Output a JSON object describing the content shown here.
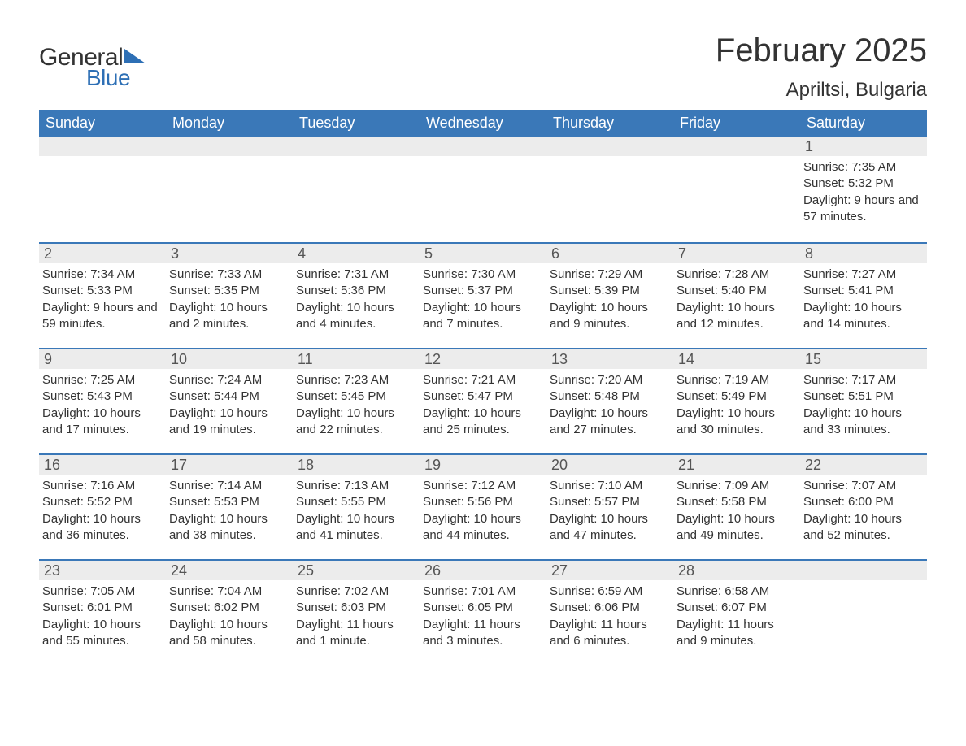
{
  "logo": {
    "text_general": "General",
    "text_blue": "Blue",
    "icon_color": "#2d6fb5"
  },
  "title": "February 2025",
  "location": "Apriltsi, Bulgaria",
  "colors": {
    "header_bg": "#3a78b8",
    "header_text": "#ffffff",
    "daynum_bg": "#ececec",
    "body_text": "#333333",
    "week_border": "#3a78b8"
  },
  "weekdays": [
    "Sunday",
    "Monday",
    "Tuesday",
    "Wednesday",
    "Thursday",
    "Friday",
    "Saturday"
  ],
  "weeks": [
    [
      {
        "day": "",
        "sunrise": "",
        "sunset": "",
        "daylight": ""
      },
      {
        "day": "",
        "sunrise": "",
        "sunset": "",
        "daylight": ""
      },
      {
        "day": "",
        "sunrise": "",
        "sunset": "",
        "daylight": ""
      },
      {
        "day": "",
        "sunrise": "",
        "sunset": "",
        "daylight": ""
      },
      {
        "day": "",
        "sunrise": "",
        "sunset": "",
        "daylight": ""
      },
      {
        "day": "",
        "sunrise": "",
        "sunset": "",
        "daylight": ""
      },
      {
        "day": "1",
        "sunrise": "Sunrise: 7:35 AM",
        "sunset": "Sunset: 5:32 PM",
        "daylight": "Daylight: 9 hours and 57 minutes."
      }
    ],
    [
      {
        "day": "2",
        "sunrise": "Sunrise: 7:34 AM",
        "sunset": "Sunset: 5:33 PM",
        "daylight": "Daylight: 9 hours and 59 minutes."
      },
      {
        "day": "3",
        "sunrise": "Sunrise: 7:33 AM",
        "sunset": "Sunset: 5:35 PM",
        "daylight": "Daylight: 10 hours and 2 minutes."
      },
      {
        "day": "4",
        "sunrise": "Sunrise: 7:31 AM",
        "sunset": "Sunset: 5:36 PM",
        "daylight": "Daylight: 10 hours and 4 minutes."
      },
      {
        "day": "5",
        "sunrise": "Sunrise: 7:30 AM",
        "sunset": "Sunset: 5:37 PM",
        "daylight": "Daylight: 10 hours and 7 minutes."
      },
      {
        "day": "6",
        "sunrise": "Sunrise: 7:29 AM",
        "sunset": "Sunset: 5:39 PM",
        "daylight": "Daylight: 10 hours and 9 minutes."
      },
      {
        "day": "7",
        "sunrise": "Sunrise: 7:28 AM",
        "sunset": "Sunset: 5:40 PM",
        "daylight": "Daylight: 10 hours and 12 minutes."
      },
      {
        "day": "8",
        "sunrise": "Sunrise: 7:27 AM",
        "sunset": "Sunset: 5:41 PM",
        "daylight": "Daylight: 10 hours and 14 minutes."
      }
    ],
    [
      {
        "day": "9",
        "sunrise": "Sunrise: 7:25 AM",
        "sunset": "Sunset: 5:43 PM",
        "daylight": "Daylight: 10 hours and 17 minutes."
      },
      {
        "day": "10",
        "sunrise": "Sunrise: 7:24 AM",
        "sunset": "Sunset: 5:44 PM",
        "daylight": "Daylight: 10 hours and 19 minutes."
      },
      {
        "day": "11",
        "sunrise": "Sunrise: 7:23 AM",
        "sunset": "Sunset: 5:45 PM",
        "daylight": "Daylight: 10 hours and 22 minutes."
      },
      {
        "day": "12",
        "sunrise": "Sunrise: 7:21 AM",
        "sunset": "Sunset: 5:47 PM",
        "daylight": "Daylight: 10 hours and 25 minutes."
      },
      {
        "day": "13",
        "sunrise": "Sunrise: 7:20 AM",
        "sunset": "Sunset: 5:48 PM",
        "daylight": "Daylight: 10 hours and 27 minutes."
      },
      {
        "day": "14",
        "sunrise": "Sunrise: 7:19 AM",
        "sunset": "Sunset: 5:49 PM",
        "daylight": "Daylight: 10 hours and 30 minutes."
      },
      {
        "day": "15",
        "sunrise": "Sunrise: 7:17 AM",
        "sunset": "Sunset: 5:51 PM",
        "daylight": "Daylight: 10 hours and 33 minutes."
      }
    ],
    [
      {
        "day": "16",
        "sunrise": "Sunrise: 7:16 AM",
        "sunset": "Sunset: 5:52 PM",
        "daylight": "Daylight: 10 hours and 36 minutes."
      },
      {
        "day": "17",
        "sunrise": "Sunrise: 7:14 AM",
        "sunset": "Sunset: 5:53 PM",
        "daylight": "Daylight: 10 hours and 38 minutes."
      },
      {
        "day": "18",
        "sunrise": "Sunrise: 7:13 AM",
        "sunset": "Sunset: 5:55 PM",
        "daylight": "Daylight: 10 hours and 41 minutes."
      },
      {
        "day": "19",
        "sunrise": "Sunrise: 7:12 AM",
        "sunset": "Sunset: 5:56 PM",
        "daylight": "Daylight: 10 hours and 44 minutes."
      },
      {
        "day": "20",
        "sunrise": "Sunrise: 7:10 AM",
        "sunset": "Sunset: 5:57 PM",
        "daylight": "Daylight: 10 hours and 47 minutes."
      },
      {
        "day": "21",
        "sunrise": "Sunrise: 7:09 AM",
        "sunset": "Sunset: 5:58 PM",
        "daylight": "Daylight: 10 hours and 49 minutes."
      },
      {
        "day": "22",
        "sunrise": "Sunrise: 7:07 AM",
        "sunset": "Sunset: 6:00 PM",
        "daylight": "Daylight: 10 hours and 52 minutes."
      }
    ],
    [
      {
        "day": "23",
        "sunrise": "Sunrise: 7:05 AM",
        "sunset": "Sunset: 6:01 PM",
        "daylight": "Daylight: 10 hours and 55 minutes."
      },
      {
        "day": "24",
        "sunrise": "Sunrise: 7:04 AM",
        "sunset": "Sunset: 6:02 PM",
        "daylight": "Daylight: 10 hours and 58 minutes."
      },
      {
        "day": "25",
        "sunrise": "Sunrise: 7:02 AM",
        "sunset": "Sunset: 6:03 PM",
        "daylight": "Daylight: 11 hours and 1 minute."
      },
      {
        "day": "26",
        "sunrise": "Sunrise: 7:01 AM",
        "sunset": "Sunset: 6:05 PM",
        "daylight": "Daylight: 11 hours and 3 minutes."
      },
      {
        "day": "27",
        "sunrise": "Sunrise: 6:59 AM",
        "sunset": "Sunset: 6:06 PM",
        "daylight": "Daylight: 11 hours and 6 minutes."
      },
      {
        "day": "28",
        "sunrise": "Sunrise: 6:58 AM",
        "sunset": "Sunset: 6:07 PM",
        "daylight": "Daylight: 11 hours and 9 minutes."
      },
      {
        "day": "",
        "sunrise": "",
        "sunset": "",
        "daylight": ""
      }
    ]
  ]
}
